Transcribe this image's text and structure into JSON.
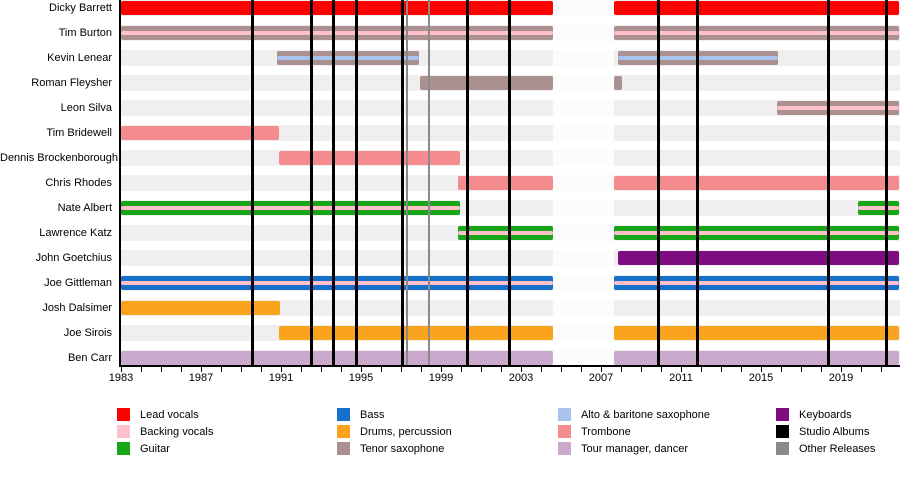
{
  "chart_data": {
    "type": "timeline",
    "description": "Band member timeline with instrument roles, studio album and other release markers",
    "axis": {
      "start_year": 1983,
      "end_year": 2022,
      "tick_every_years": 1,
      "label_every_years": 4,
      "tick_labels": [
        "1983",
        "1987",
        "1991",
        "1995",
        "1999",
        "2003",
        "2007",
        "2011",
        "2015",
        "2019"
      ]
    },
    "hiatus_period": {
      "start": 2004.6,
      "end": 2007.65
    },
    "releases": {
      "studio_albums": [
        1989.55,
        1992.5,
        1993.6,
        1994.75,
        1997.05,
        2000.3,
        2002.4,
        2009.85,
        2011.8,
        2018.35,
        2021.25
      ],
      "other_releases": [
        1997.3,
        1998.4
      ]
    },
    "members": [
      {
        "name": "Dicky Barrett",
        "roles": [
          "lead_vocals"
        ],
        "segments": [
          [
            1983,
            2004.6
          ],
          [
            2007.65,
            2022
          ]
        ]
      },
      {
        "name": "Tim Burton",
        "roles": [
          "tenor_sax",
          "backing_vocals"
        ],
        "segments": [
          [
            1983,
            2004.6
          ],
          [
            2007.65,
            2022
          ]
        ]
      },
      {
        "name": "Kevin Lenear",
        "roles": [
          "tenor_sax",
          "alto_bari_sax"
        ],
        "segments": [
          [
            1990.8,
            1997.9
          ],
          [
            2007.85,
            2015.85
          ]
        ]
      },
      {
        "name": "Roman Fleysher",
        "roles": [
          "tenor_sax"
        ],
        "segments": [
          [
            1997.95,
            2004.6
          ],
          [
            2007.65,
            2008.05
          ]
        ]
      },
      {
        "name": "Leon Silva",
        "roles": [
          "tenor_sax",
          "backing_vocals"
        ],
        "segments": [
          [
            2015.8,
            2022
          ]
        ]
      },
      {
        "name": "Tim Bridewell",
        "roles": [
          "trombone"
        ],
        "segments": [
          [
            1983,
            1990.9
          ]
        ]
      },
      {
        "name": "Dennis Brockenborough",
        "roles": [
          "trombone"
        ],
        "segments": [
          [
            1990.9,
            1999.95
          ]
        ]
      },
      {
        "name": "Chris Rhodes",
        "roles": [
          "trombone"
        ],
        "segments": [
          [
            1999.85,
            2004.6
          ],
          [
            2007.65,
            2022
          ]
        ]
      },
      {
        "name": "Nate Albert",
        "roles": [
          "guitar",
          "backing_vocals"
        ],
        "segments": [
          [
            1983,
            1999.95
          ],
          [
            2019.85,
            2022
          ]
        ]
      },
      {
        "name": "Lawrence Katz",
        "roles": [
          "guitar",
          "backing_vocals"
        ],
        "segments": [
          [
            1999.85,
            2004.6
          ],
          [
            2007.65,
            2022
          ]
        ]
      },
      {
        "name": "John Goetchius",
        "roles": [
          "keyboards"
        ],
        "segments": [
          [
            2007.85,
            2022
          ]
        ]
      },
      {
        "name": "Joe Gittleman",
        "roles": [
          "bass",
          "backing_vocals"
        ],
        "segments": [
          [
            1983,
            2004.6
          ],
          [
            2007.65,
            2022
          ]
        ]
      },
      {
        "name": "Josh Dalsimer",
        "roles": [
          "drums"
        ],
        "segments": [
          [
            1983,
            1990.95
          ]
        ]
      },
      {
        "name": "Joe Sirois",
        "roles": [
          "drums"
        ],
        "segments": [
          [
            1990.9,
            2004.6
          ],
          [
            2007.65,
            2022
          ]
        ]
      },
      {
        "name": "Ben Carr",
        "roles": [
          "tour_manager"
        ],
        "segments": [
          [
            1983,
            2004.6
          ],
          [
            2007.65,
            2022
          ]
        ]
      }
    ],
    "colors": {
      "lead_vocals": "#FF0000",
      "backing_vocals": "#FFC0CB",
      "guitar": "#17A617",
      "bass": "#1470C8",
      "drums": "#F9A41C",
      "tenor_sax": "#AB9090",
      "alto_bari_sax": "#A9C3EF",
      "trombone": "#F68B8F",
      "tour_manager": "#CBA9CD",
      "keyboards": "#7F0C81",
      "studio_albums": "#000000",
      "other_releases": "#8A8A8A",
      "row_track": "#EFEFEF"
    },
    "legend": {
      "columns": [
        [
          {
            "label": "Lead vocals",
            "color_key": "lead_vocals"
          },
          {
            "label": "Backing vocals",
            "color_key": "backing_vocals"
          },
          {
            "label": "Guitar",
            "color_key": "guitar"
          }
        ],
        [
          {
            "label": "Bass",
            "color_key": "bass"
          },
          {
            "label": "Drums, percussion",
            "color_key": "drums"
          },
          {
            "label": "Tenor saxophone",
            "color_key": "tenor_sax"
          }
        ],
        [
          {
            "label": "Alto & baritone saxophone",
            "color_key": "alto_bari_sax"
          },
          {
            "label": "Trombone",
            "color_key": "trombone"
          },
          {
            "label": "Tour manager, dancer",
            "color_key": "tour_manager"
          }
        ],
        [
          {
            "label": "Keyboards",
            "color_key": "keyboards"
          },
          {
            "label": "Studio Albums",
            "color_key": "studio_albums"
          },
          {
            "label": "Other Releases",
            "color_key": "other_releases"
          }
        ]
      ]
    }
  }
}
